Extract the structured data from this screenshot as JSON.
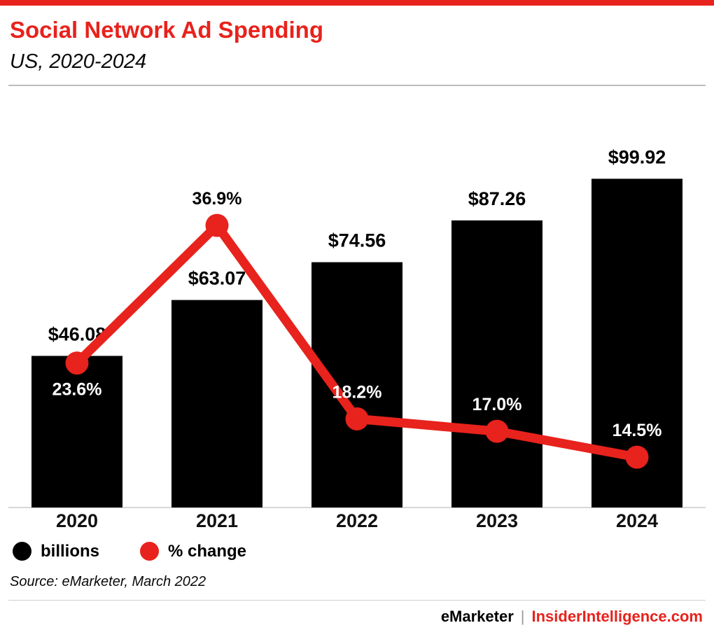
{
  "colors": {
    "accent": "#e8221c",
    "bar": "#000000",
    "line": "#e8221c",
    "muted": "#9a9a9a",
    "divider": "#bdbdbd"
  },
  "header": {
    "title": "Social Network Ad Spending",
    "subtitle": "US, 2020-2024"
  },
  "chart_data": {
    "type": "bar",
    "title": "Social Network Ad Spending",
    "subtitle": "US, 2020-2024",
    "xlabel": "",
    "ylabel": "",
    "categories": [
      "2020",
      "2021",
      "2022",
      "2023",
      "2024"
    ],
    "ylim": [
      0,
      100
    ],
    "grid": false,
    "legend_position": "bottom",
    "series": [
      {
        "name": "billions",
        "type": "bar",
        "color": "#000000",
        "values": [
          46.08,
          63.07,
          74.56,
          87.26,
          99.92
        ],
        "labels": [
          "$46.08",
          "$63.07",
          "$74.56",
          "$87.26",
          "$99.92"
        ]
      },
      {
        "name": "% change",
        "type": "line",
        "color": "#e8221c",
        "values": [
          23.6,
          36.9,
          18.2,
          17.0,
          14.5
        ],
        "labels": [
          "23.6%",
          "36.9%",
          "18.2%",
          "17.0%",
          "14.5%"
        ],
        "label_positions": [
          "below",
          "above",
          "above",
          "above",
          "above"
        ],
        "label_colors": [
          "#ffffff",
          "#000000",
          "#ffffff",
          "#ffffff",
          "#ffffff"
        ]
      }
    ]
  },
  "legend": {
    "items": [
      {
        "label": "billions",
        "color": "#000000"
      },
      {
        "label": "% change",
        "color": "#e8221c"
      }
    ]
  },
  "source": "Source: eMarketer, March 2022",
  "footer": {
    "brand": "eMarketer",
    "separator": "|",
    "site": "InsiderIntelligence.com"
  }
}
